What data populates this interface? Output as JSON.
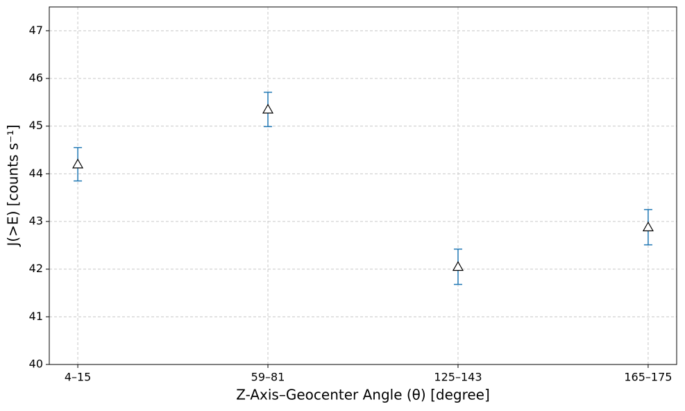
{
  "chart_data": {
    "type": "errorbar",
    "xlabel": "Z-Axis–Geocenter Angle (θ) [degree]",
    "ylabel": "J(>E) [counts s⁻¹]",
    "categories": [
      "4–15",
      "59–81",
      "125–143",
      "165–175"
    ],
    "values": [
      44.2,
      45.35,
      42.05,
      42.88
    ],
    "errors": [
      0.35,
      0.36,
      0.37,
      0.37
    ],
    "color": "#1f77b4",
    "marker_face": "#ffffff",
    "marker_edge": "#000000",
    "ylim": [
      40,
      47.5
    ],
    "yticks": [
      40,
      41,
      42,
      43,
      44,
      45,
      46,
      47
    ],
    "grid": true
  }
}
